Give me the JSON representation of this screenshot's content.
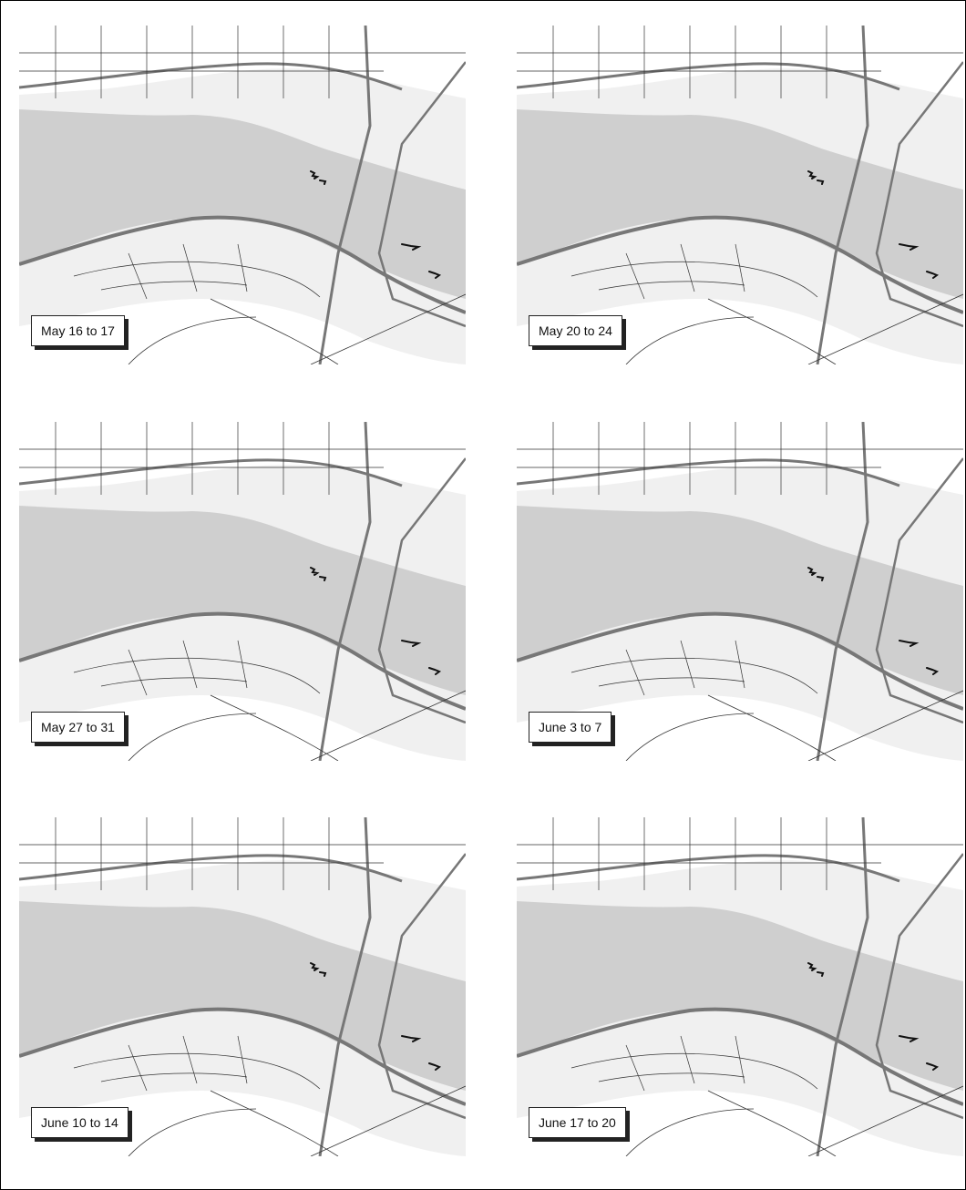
{
  "panels": [
    {
      "label": "May 16 to 17"
    },
    {
      "label": "May 20 to 24"
    },
    {
      "label": "May 27 to 31"
    },
    {
      "label": "June 3 to 7"
    },
    {
      "label": "June 10 to 14"
    },
    {
      "label": "June 17 to 20"
    }
  ],
  "colors": {
    "water": "#cfcfcf",
    "land": "#f0f0f0",
    "land_alt": "#ffffff",
    "road": "#333333",
    "highway": "#777777",
    "observation_marks": "#111111"
  }
}
